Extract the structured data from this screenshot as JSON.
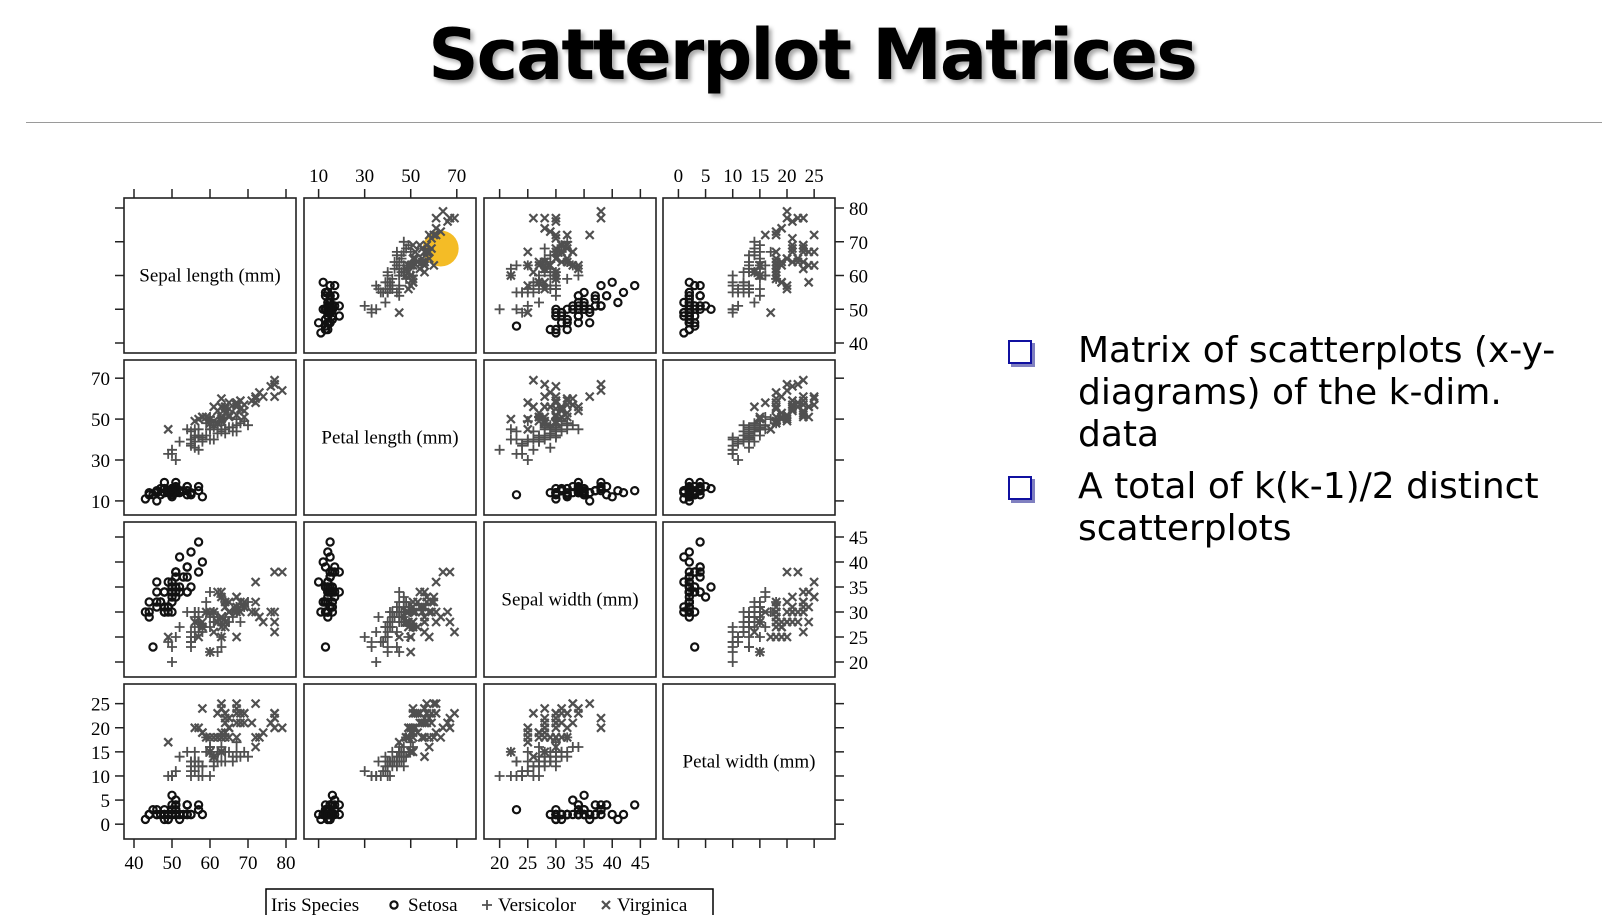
{
  "slide": {
    "title": "Scatterplot Matrices",
    "bullets": [
      "Matrix of scatterplots (x-y-diagrams) of the k-dim. data",
      "A total of k(k-1)/2 distinct scatterplots"
    ]
  },
  "colors": {
    "bullet_square": "#1010a0",
    "marks": "#505050",
    "setosa": "#111111",
    "highlight": "#f2b000"
  },
  "chart_data": {
    "type": "scatter",
    "variables": [
      {
        "label": "Sepal length (mm)",
        "ticks": [
          40,
          50,
          60,
          70,
          80
        ],
        "range": [
          40,
          80
        ]
      },
      {
        "label": "Petal length (mm)",
        "ticks": [
          10,
          30,
          50,
          70
        ],
        "range": [
          8,
          74
        ]
      },
      {
        "label": "Sepal width (mm)",
        "ticks": [
          20,
          25,
          30,
          35,
          40,
          45
        ],
        "range": [
          19,
          46
        ]
      },
      {
        "label": "Petal width (mm)",
        "ticks": [
          0,
          5,
          10,
          15,
          20,
          25
        ],
        "range": [
          -1,
          27
        ]
      }
    ],
    "legend": {
      "title": "Iris Species",
      "placement": "bottom",
      "entries": [
        {
          "name": "Setosa",
          "marker": "circle"
        },
        {
          "name": "Versicolor",
          "marker": "plus"
        },
        {
          "name": "Virginica",
          "marker": "cross"
        }
      ]
    },
    "highlight": {
      "row": 0,
      "col": 1,
      "x": 63,
      "y": 68
    },
    "series": [
      {
        "name": "Setosa",
        "points": [
          [
            51,
            14,
            35,
            2
          ],
          [
            49,
            14,
            30,
            2
          ],
          [
            47,
            13,
            32,
            2
          ],
          [
            46,
            15,
            31,
            2
          ],
          [
            50,
            14,
            36,
            2
          ],
          [
            54,
            17,
            39,
            4
          ],
          [
            46,
            14,
            34,
            3
          ],
          [
            50,
            15,
            34,
            2
          ],
          [
            44,
            14,
            29,
            2
          ],
          [
            49,
            15,
            31,
            1
          ],
          [
            54,
            15,
            37,
            2
          ],
          [
            48,
            16,
            34,
            2
          ],
          [
            48,
            14,
            30,
            1
          ],
          [
            43,
            11,
            30,
            1
          ],
          [
            58,
            12,
            40,
            2
          ],
          [
            57,
            15,
            44,
            4
          ],
          [
            54,
            13,
            39,
            4
          ],
          [
            51,
            14,
            35,
            3
          ],
          [
            57,
            17,
            38,
            3
          ],
          [
            51,
            15,
            38,
            3
          ],
          [
            54,
            17,
            34,
            2
          ],
          [
            51,
            15,
            37,
            4
          ],
          [
            46,
            10,
            36,
            2
          ],
          [
            51,
            17,
            33,
            5
          ],
          [
            48,
            19,
            34,
            2
          ],
          [
            50,
            16,
            30,
            2
          ],
          [
            50,
            16,
            34,
            4
          ],
          [
            52,
            15,
            35,
            2
          ],
          [
            52,
            14,
            34,
            2
          ],
          [
            47,
            16,
            32,
            2
          ],
          [
            48,
            16,
            31,
            2
          ],
          [
            54,
            15,
            34,
            4
          ],
          [
            52,
            15,
            41,
            1
          ],
          [
            55,
            14,
            42,
            2
          ],
          [
            49,
            15,
            31,
            2
          ],
          [
            50,
            12,
            32,
            2
          ],
          [
            55,
            13,
            35,
            2
          ],
          [
            49,
            14,
            36,
            1
          ],
          [
            44,
            13,
            30,
            2
          ],
          [
            51,
            15,
            34,
            2
          ],
          [
            50,
            13,
            35,
            3
          ],
          [
            45,
            13,
            23,
            3
          ],
          [
            44,
            13,
            32,
            2
          ],
          [
            50,
            16,
            35,
            6
          ],
          [
            51,
            19,
            38,
            4
          ],
          [
            48,
            14,
            30,
            3
          ],
          [
            51,
            16,
            38,
            2
          ],
          [
            46,
            14,
            32,
            2
          ],
          [
            53,
            15,
            37,
            2
          ],
          [
            50,
            14,
            33,
            2
          ]
        ]
      },
      {
        "name": "Versicolor",
        "points": [
          [
            70,
            47,
            32,
            14
          ],
          [
            64,
            45,
            32,
            15
          ],
          [
            69,
            49,
            31,
            15
          ],
          [
            55,
            40,
            23,
            13
          ],
          [
            65,
            46,
            28,
            15
          ],
          [
            57,
            45,
            28,
            13
          ],
          [
            63,
            47,
            33,
            16
          ],
          [
            49,
            33,
            24,
            10
          ],
          [
            66,
            46,
            29,
            13
          ],
          [
            52,
            39,
            27,
            14
          ],
          [
            50,
            35,
            20,
            10
          ],
          [
            59,
            42,
            30,
            15
          ],
          [
            60,
            40,
            22,
            10
          ],
          [
            61,
            47,
            29,
            14
          ],
          [
            56,
            36,
            29,
            13
          ],
          [
            67,
            44,
            31,
            14
          ],
          [
            56,
            45,
            30,
            15
          ],
          [
            58,
            41,
            27,
            10
          ],
          [
            62,
            45,
            22,
            15
          ],
          [
            56,
            39,
            25,
            11
          ],
          [
            59,
            48,
            32,
            18
          ],
          [
            61,
            40,
            28,
            13
          ],
          [
            63,
            49,
            25,
            15
          ],
          [
            61,
            47,
            28,
            12
          ],
          [
            64,
            43,
            29,
            13
          ],
          [
            66,
            44,
            30,
            14
          ],
          [
            68,
            48,
            28,
            14
          ],
          [
            67,
            50,
            30,
            17
          ],
          [
            60,
            45,
            29,
            15
          ],
          [
            57,
            35,
            26,
            10
          ],
          [
            55,
            38,
            24,
            11
          ],
          [
            55,
            37,
            24,
            10
          ],
          [
            58,
            39,
            27,
            12
          ],
          [
            60,
            51,
            27,
            16
          ],
          [
            54,
            45,
            30,
            15
          ],
          [
            60,
            45,
            34,
            16
          ],
          [
            67,
            47,
            31,
            15
          ],
          [
            63,
            44,
            23,
            13
          ],
          [
            56,
            41,
            30,
            13
          ],
          [
            55,
            40,
            25,
            13
          ],
          [
            55,
            44,
            26,
            12
          ],
          [
            61,
            46,
            30,
            14
          ],
          [
            58,
            40,
            26,
            12
          ],
          [
            50,
            33,
            23,
            10
          ],
          [
            56,
            42,
            27,
            13
          ],
          [
            57,
            42,
            30,
            12
          ],
          [
            57,
            42,
            29,
            13
          ],
          [
            62,
            43,
            29,
            13
          ],
          [
            51,
            30,
            25,
            11
          ],
          [
            57,
            41,
            28,
            13
          ]
        ]
      },
      {
        "name": "Virginica",
        "points": [
          [
            63,
            60,
            33,
            25
          ],
          [
            58,
            51,
            27,
            19
          ],
          [
            71,
            59,
            30,
            21
          ],
          [
            63,
            56,
            29,
            18
          ],
          [
            65,
            58,
            30,
            22
          ],
          [
            76,
            66,
            30,
            21
          ],
          [
            49,
            45,
            25,
            17
          ],
          [
            73,
            63,
            29,
            18
          ],
          [
            67,
            58,
            25,
            18
          ],
          [
            72,
            61,
            36,
            25
          ],
          [
            65,
            51,
            32,
            20
          ],
          [
            64,
            53,
            27,
            19
          ],
          [
            68,
            55,
            30,
            21
          ],
          [
            57,
            50,
            25,
            20
          ],
          [
            58,
            51,
            28,
            24
          ],
          [
            64,
            53,
            32,
            23
          ],
          [
            65,
            55,
            30,
            18
          ],
          [
            77,
            67,
            38,
            22
          ],
          [
            77,
            69,
            26,
            23
          ],
          [
            60,
            50,
            22,
            15
          ],
          [
            69,
            57,
            32,
            23
          ],
          [
            56,
            49,
            28,
            20
          ],
          [
            77,
            67,
            28,
            20
          ],
          [
            63,
            49,
            27,
            18
          ],
          [
            67,
            57,
            33,
            21
          ],
          [
            72,
            60,
            32,
            18
          ],
          [
            62,
            48,
            28,
            18
          ],
          [
            61,
            49,
            30,
            18
          ],
          [
            64,
            56,
            28,
            21
          ],
          [
            72,
            58,
            30,
            16
          ],
          [
            74,
            61,
            28,
            19
          ],
          [
            79,
            64,
            38,
            20
          ],
          [
            64,
            56,
            28,
            22
          ],
          [
            63,
            51,
            28,
            15
          ],
          [
            61,
            56,
            26,
            14
          ],
          [
            77,
            61,
            30,
            23
          ],
          [
            63,
            56,
            34,
            24
          ],
          [
            64,
            55,
            31,
            18
          ],
          [
            60,
            48,
            30,
            18
          ],
          [
            69,
            54,
            31,
            21
          ],
          [
            67,
            56,
            31,
            24
          ],
          [
            69,
            51,
            31,
            23
          ],
          [
            58,
            51,
            27,
            19
          ],
          [
            68,
            59,
            32,
            23
          ],
          [
            67,
            57,
            33,
            25
          ],
          [
            67,
            52,
            30,
            23
          ],
          [
            63,
            50,
            25,
            19
          ],
          [
            65,
            52,
            30,
            20
          ],
          [
            62,
            54,
            34,
            23
          ],
          [
            59,
            51,
            30,
            18
          ]
        ]
      }
    ]
  }
}
